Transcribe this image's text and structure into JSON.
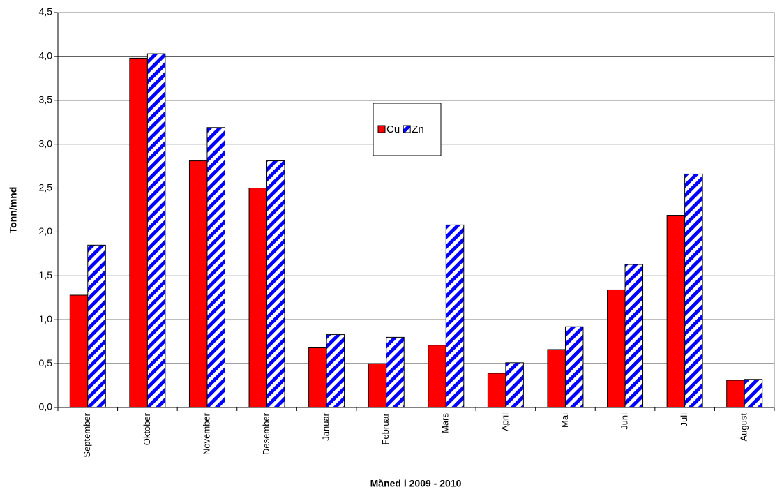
{
  "chart_data": {
    "type": "bar",
    "x_label": "Måned i 2009 - 2010",
    "y_label": "Tonn/mnd",
    "categories": [
      "September",
      "Oktober",
      "November",
      "Desember",
      "Januar",
      "Februar",
      "Mars",
      "April",
      "Mai",
      "Juni",
      "Juli",
      "August"
    ],
    "series": [
      {
        "name": "Cu",
        "color": "#ff0000",
        "values": [
          1.28,
          3.98,
          2.81,
          2.5,
          0.68,
          0.5,
          0.71,
          0.39,
          0.66,
          1.34,
          2.19,
          0.31
        ]
      },
      {
        "name": "Zn",
        "color": "#0000ff",
        "hatch": true,
        "values": [
          1.85,
          4.03,
          3.19,
          2.81,
          0.83,
          0.8,
          2.08,
          0.51,
          0.92,
          1.63,
          2.66,
          0.32
        ]
      }
    ],
    "ylim": [
      0,
      4.5
    ],
    "yticks": [
      {
        "value": 0,
        "label": "0,0"
      },
      {
        "value": 0.5,
        "label": "0,5"
      },
      {
        "value": 1,
        "label": "1,0"
      },
      {
        "value": 1.5,
        "label": "1,5"
      },
      {
        "value": 2,
        "label": "2,0"
      },
      {
        "value": 2.5,
        "label": "2,5"
      },
      {
        "value": 3,
        "label": "3,0"
      },
      {
        "value": 3.5,
        "label": "3,5"
      },
      {
        "value": 4,
        "label": "4,0"
      },
      {
        "value": 4.5,
        "label": "4,5"
      }
    ],
    "grid": true,
    "legend": "top-center"
  }
}
